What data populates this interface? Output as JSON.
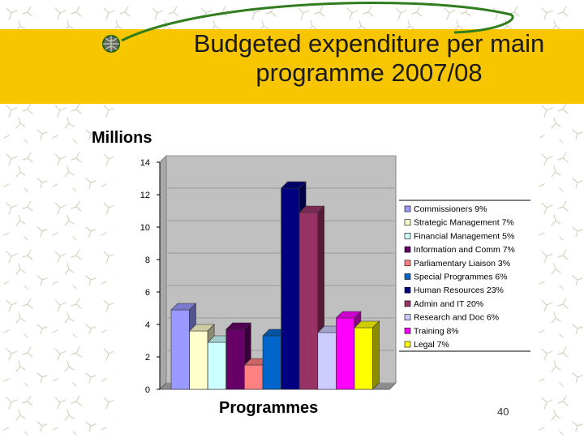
{
  "slide": {
    "title_line1": "Budgeted expenditure per main",
    "title_line2": "programme 2007/08",
    "page_number": "40",
    "colors": {
      "title_band": "#f7c600",
      "plot_background": "#c0c0c0"
    }
  },
  "chart_data": {
    "type": "bar",
    "title": "Budgeted expenditure per main programme 2007/08",
    "ylabel": "Millions",
    "xlabel": "Programmes",
    "ylim": [
      0,
      14
    ],
    "yticks": [
      0,
      2,
      4,
      6,
      8,
      10,
      12,
      14
    ],
    "grid": true,
    "legend_position": "right",
    "three_d": true,
    "series": [
      {
        "name": "Commissioners 9%",
        "value": 4.9,
        "color": "#9999ff"
      },
      {
        "name": "Strategic Management 7%",
        "value": 3.6,
        "color": "#ffffcc"
      },
      {
        "name": "Financial Management 5%",
        "value": 2.9,
        "color": "#ccffff"
      },
      {
        "name": "Information and Comm 7%",
        "value": 3.7,
        "color": "#660066"
      },
      {
        "name": "Parliamentary Liaison 3%",
        "value": 1.5,
        "color": "#ff8080"
      },
      {
        "name": "Special Programmes 6%",
        "value": 3.3,
        "color": "#0066cc"
      },
      {
        "name": "Human Resources 23%",
        "value": 12.4,
        "color": "#000080"
      },
      {
        "name": "Admin and IT 20%",
        "value": 10.9,
        "color": "#993366"
      },
      {
        "name": "Research and Doc 6%",
        "value": 3.5,
        "color": "#ccccff"
      },
      {
        "name": "Training 8%",
        "value": 4.4,
        "color": "#ff00ff"
      },
      {
        "name": "Legal 7%",
        "value": 3.8,
        "color": "#ffff00"
      }
    ]
  }
}
